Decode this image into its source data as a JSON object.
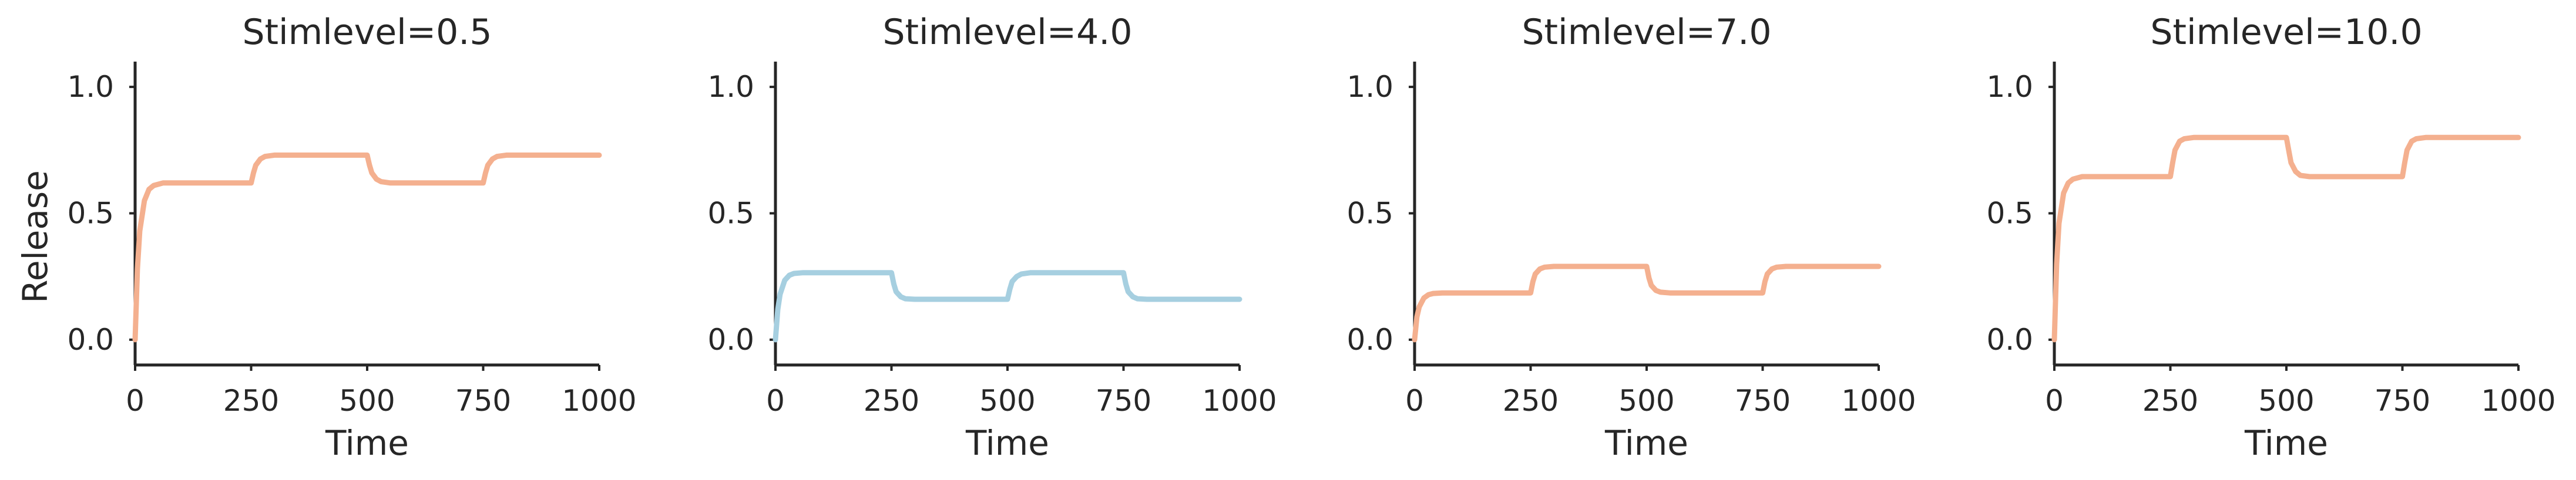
{
  "chart_data": [
    {
      "type": "line",
      "title": "Stimlevel=0.5",
      "xlabel": "Time",
      "ylabel": "Release",
      "xlim": [
        0,
        1000
      ],
      "ylim": [
        -0.1,
        1.1
      ],
      "xticks": [
        0,
        250,
        500,
        750,
        1000
      ],
      "xtick_labels": [
        "0",
        "250",
        "500",
        "750",
        "1000"
      ],
      "yticks": [
        0.0,
        0.5,
        1.0
      ],
      "ytick_labels": [
        "0.0",
        "0.5",
        "1.0"
      ],
      "color": "#F4B08F",
      "series": [
        {
          "x": [
            0,
            5,
            10,
            20,
            30,
            40,
            60,
            100,
            250,
            255,
            260,
            270,
            280,
            300,
            350,
            500,
            505,
            510,
            520,
            530,
            550,
            600,
            750,
            755,
            760,
            770,
            780,
            800,
            850,
            1000
          ],
          "y": [
            0.0,
            0.28,
            0.43,
            0.55,
            0.595,
            0.61,
            0.62,
            0.62,
            0.62,
            0.66,
            0.69,
            0.715,
            0.725,
            0.73,
            0.73,
            0.73,
            0.69,
            0.66,
            0.635,
            0.625,
            0.62,
            0.62,
            0.62,
            0.66,
            0.69,
            0.715,
            0.725,
            0.73,
            0.73,
            0.73
          ]
        }
      ]
    },
    {
      "type": "line",
      "title": "Stimlevel=4.0",
      "xlabel": "Time",
      "ylabel": "",
      "xlim": [
        0,
        1000
      ],
      "ylim": [
        -0.1,
        1.1
      ],
      "xticks": [
        0,
        250,
        500,
        750,
        1000
      ],
      "xtick_labels": [
        "0",
        "250",
        "500",
        "750",
        "1000"
      ],
      "yticks": [
        0.0,
        0.5,
        1.0
      ],
      "ytick_labels": [
        "0.0",
        "0.5",
        "1.0"
      ],
      "color": "#A6CFE0",
      "series": [
        {
          "x": [
            0,
            5,
            10,
            20,
            30,
            40,
            60,
            100,
            250,
            255,
            260,
            270,
            280,
            300,
            350,
            500,
            505,
            510,
            520,
            530,
            550,
            600,
            750,
            755,
            760,
            770,
            780,
            800,
            850,
            1000
          ],
          "y": [
            0.0,
            0.12,
            0.18,
            0.235,
            0.255,
            0.262,
            0.265,
            0.265,
            0.265,
            0.22,
            0.19,
            0.17,
            0.162,
            0.16,
            0.16,
            0.16,
            0.2,
            0.23,
            0.25,
            0.26,
            0.265,
            0.265,
            0.265,
            0.22,
            0.19,
            0.17,
            0.162,
            0.16,
            0.16,
            0.16
          ]
        }
      ]
    },
    {
      "type": "line",
      "title": "Stimlevel=7.0",
      "xlabel": "Time",
      "ylabel": "",
      "xlim": [
        0,
        1000
      ],
      "ylim": [
        -0.1,
        1.1
      ],
      "xticks": [
        0,
        250,
        500,
        750,
        1000
      ],
      "xtick_labels": [
        "0",
        "250",
        "500",
        "750",
        "1000"
      ],
      "yticks": [
        0.0,
        0.5,
        1.0
      ],
      "ytick_labels": [
        "0.0",
        "0.5",
        "1.0"
      ],
      "color": "#F4B08F",
      "series": [
        {
          "x": [
            0,
            5,
            10,
            20,
            30,
            40,
            60,
            100,
            250,
            255,
            260,
            270,
            280,
            300,
            350,
            500,
            505,
            510,
            520,
            530,
            550,
            600,
            750,
            755,
            760,
            770,
            780,
            800,
            850,
            1000
          ],
          "y": [
            0.0,
            0.09,
            0.13,
            0.165,
            0.178,
            0.183,
            0.185,
            0.185,
            0.185,
            0.23,
            0.26,
            0.28,
            0.287,
            0.29,
            0.29,
            0.29,
            0.245,
            0.215,
            0.195,
            0.188,
            0.185,
            0.185,
            0.185,
            0.23,
            0.26,
            0.28,
            0.287,
            0.29,
            0.29,
            0.29
          ]
        }
      ]
    },
    {
      "type": "line",
      "title": "Stimlevel=10.0",
      "xlabel": "Time",
      "ylabel": "",
      "xlim": [
        0,
        1000
      ],
      "ylim": [
        -0.1,
        1.1
      ],
      "xticks": [
        0,
        250,
        500,
        750,
        1000
      ],
      "xtick_labels": [
        "0",
        "250",
        "500",
        "750",
        "1000"
      ],
      "yticks": [
        0.0,
        0.5,
        1.0
      ],
      "ytick_labels": [
        "0.0",
        "0.5",
        "1.0"
      ],
      "color": "#F4B08F",
      "series": [
        {
          "x": [
            0,
            5,
            10,
            20,
            30,
            40,
            60,
            100,
            250,
            255,
            260,
            270,
            280,
            300,
            350,
            500,
            505,
            510,
            520,
            530,
            550,
            600,
            750,
            755,
            760,
            770,
            780,
            800,
            850,
            1000
          ],
          "y": [
            0.0,
            0.3,
            0.46,
            0.58,
            0.62,
            0.635,
            0.645,
            0.645,
            0.645,
            0.7,
            0.75,
            0.785,
            0.795,
            0.8,
            0.8,
            0.8,
            0.75,
            0.7,
            0.665,
            0.65,
            0.645,
            0.645,
            0.645,
            0.7,
            0.75,
            0.785,
            0.795,
            0.8,
            0.8,
            0.8
          ]
        }
      ]
    }
  ]
}
